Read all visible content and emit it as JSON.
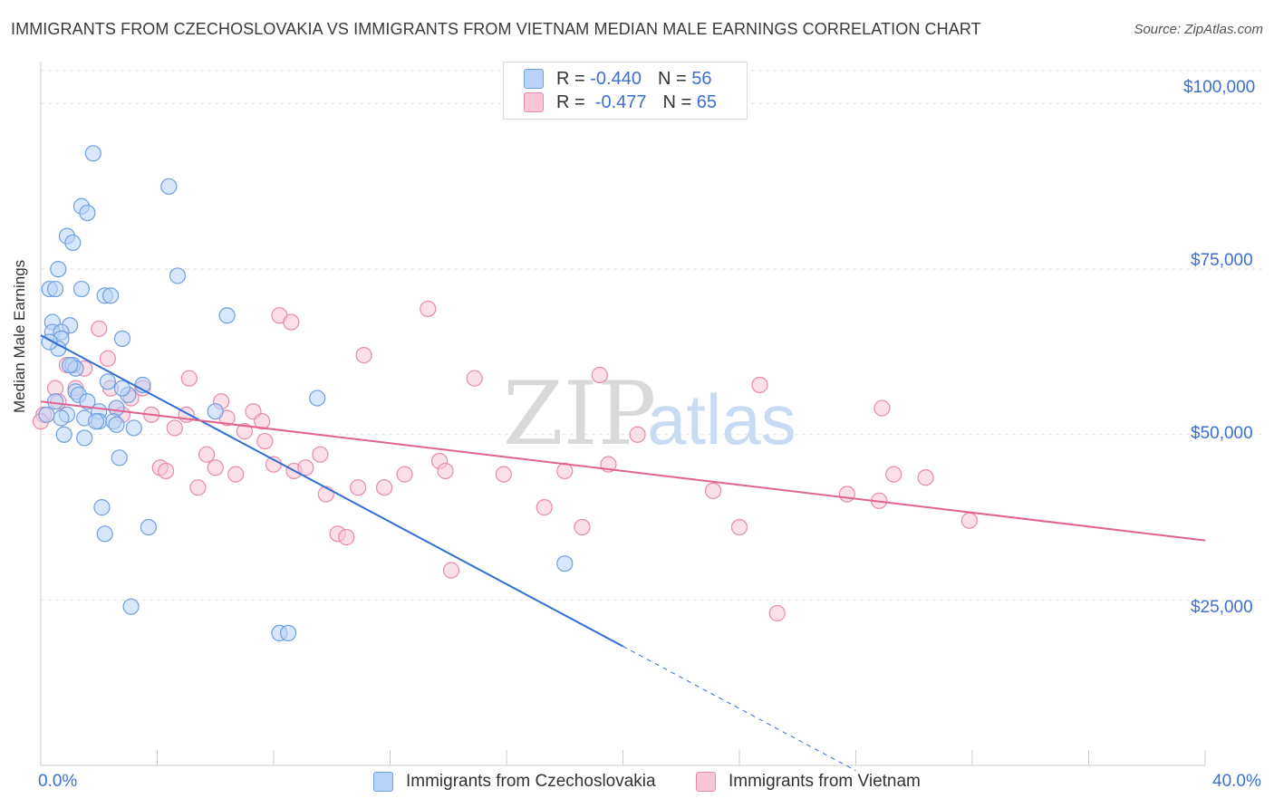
{
  "title": "IMMIGRANTS FROM CZECHOSLOVAKIA VS IMMIGRANTS FROM VIETNAM MEDIAN MALE EARNINGS CORRELATION CHART",
  "source": "Source: ZipAtlas.com",
  "watermark": {
    "zip": "ZIP",
    "atlas": "atlas"
  },
  "legend": {
    "rows": [
      {
        "r_label": "R = ",
        "r_value": "-0.440",
        "n_label": "N = ",
        "n_value": "56",
        "color": "#a8c8f4"
      },
      {
        "r_label": "R = ",
        "r_value": " -0.477",
        "n_label": "N = ",
        "n_value": "65",
        "color": "#f5b8cc"
      }
    ]
  },
  "colors": {
    "blue_fill": "#b8d3f7",
    "blue_stroke": "#6f9fe0",
    "blue_line": "#2f6fd6",
    "pink_fill": "#f8c6d6",
    "pink_stroke": "#e98aaa",
    "pink_line": "#e0638f",
    "grid": "#e4e4e4",
    "axis_text": "#3b6fd1"
  },
  "chart_data": {
    "type": "scatter",
    "title": "IMMIGRANTS FROM CZECHOSLOVAKIA VS IMMIGRANTS FROM VIETNAM MEDIAN MALE EARNINGS CORRELATION CHART",
    "xlabel": "",
    "ylabel": "Median Male Earnings",
    "xlim": [
      0,
      40
    ],
    "ylim": [
      0,
      105000
    ],
    "y_ticks": [
      25000,
      50000,
      75000,
      100000
    ],
    "y_tick_labels": [
      "$25,000",
      "$50,000",
      "$75,000",
      "$100,000"
    ],
    "x_tick_labels": [
      "0.0%",
      "40.0%"
    ],
    "series": [
      {
        "name": "Immigrants from Czechoslovakia",
        "r": -0.44,
        "n": 56,
        "trend": {
          "x0": 0,
          "y0": 65000,
          "x1": 20,
          "y1": 18000,
          "dash_to_x": 28
        },
        "points": [
          [
            1.8,
            92500
          ],
          [
            4.4,
            87500
          ],
          [
            1.4,
            84500
          ],
          [
            1.6,
            83500
          ],
          [
            0.9,
            80000
          ],
          [
            1.1,
            79000
          ],
          [
            0.6,
            75000
          ],
          [
            4.7,
            74000
          ],
          [
            0.3,
            72000
          ],
          [
            0.5,
            72000
          ],
          [
            1.4,
            72000
          ],
          [
            2.2,
            71000
          ],
          [
            2.4,
            71000
          ],
          [
            6.4,
            68000
          ],
          [
            0.4,
            67000
          ],
          [
            1.0,
            66500
          ],
          [
            0.4,
            65500
          ],
          [
            0.7,
            65500
          ],
          [
            0.7,
            64500
          ],
          [
            2.8,
            64500
          ],
          [
            0.6,
            63000
          ],
          [
            1.1,
            60500
          ],
          [
            1.2,
            60000
          ],
          [
            2.3,
            58000
          ],
          [
            3.5,
            57500
          ],
          [
            1.2,
            56500
          ],
          [
            1.3,
            56000
          ],
          [
            1.6,
            55000
          ],
          [
            2.6,
            54000
          ],
          [
            2.0,
            53500
          ],
          [
            6.0,
            53500
          ],
          [
            0.9,
            53000
          ],
          [
            0.7,
            52500
          ],
          [
            1.5,
            52500
          ],
          [
            2.0,
            52000
          ],
          [
            2.5,
            52000
          ],
          [
            2.6,
            51500
          ],
          [
            3.2,
            51000
          ],
          [
            0.8,
            50000
          ],
          [
            1.5,
            49500
          ],
          [
            9.5,
            55500
          ],
          [
            2.7,
            46500
          ],
          [
            2.1,
            39000
          ],
          [
            2.2,
            35000
          ],
          [
            3.7,
            36000
          ],
          [
            18.0,
            30500
          ],
          [
            3.1,
            24000
          ],
          [
            8.2,
            20000
          ],
          [
            8.5,
            20000
          ],
          [
            0.2,
            53000
          ],
          [
            1.0,
            60500
          ],
          [
            0.3,
            64000
          ],
          [
            3.0,
            56000
          ],
          [
            1.9,
            52000
          ],
          [
            0.5,
            55000
          ],
          [
            2.8,
            57000
          ]
        ]
      },
      {
        "name": "Immigrants from Vietnam",
        "r": -0.477,
        "n": 65,
        "trend": {
          "x0": 0,
          "y0": 55000,
          "x1": 40,
          "y1": 34000
        },
        "points": [
          [
            0.1,
            53000
          ],
          [
            0.5,
            57000
          ],
          [
            0.6,
            55000
          ],
          [
            0.9,
            60500
          ],
          [
            1.2,
            57000
          ],
          [
            1.5,
            60000
          ],
          [
            2.0,
            66000
          ],
          [
            2.3,
            61500
          ],
          [
            2.4,
            57000
          ],
          [
            2.6,
            54000
          ],
          [
            2.8,
            53000
          ],
          [
            3.1,
            55500
          ],
          [
            3.5,
            57000
          ],
          [
            3.8,
            53000
          ],
          [
            4.1,
            45000
          ],
          [
            4.3,
            44500
          ],
          [
            4.6,
            51000
          ],
          [
            5.0,
            53000
          ],
          [
            5.1,
            58500
          ],
          [
            5.4,
            42000
          ],
          [
            5.7,
            47000
          ],
          [
            6.0,
            45000
          ],
          [
            6.2,
            55000
          ],
          [
            6.4,
            52500
          ],
          [
            6.7,
            44000
          ],
          [
            7.0,
            50500
          ],
          [
            7.3,
            53500
          ],
          [
            7.6,
            52000
          ],
          [
            7.7,
            49000
          ],
          [
            8.0,
            45500
          ],
          [
            8.2,
            68000
          ],
          [
            8.6,
            67000
          ],
          [
            8.7,
            44500
          ],
          [
            9.1,
            45000
          ],
          [
            9.6,
            47000
          ],
          [
            9.8,
            41000
          ],
          [
            10.2,
            35000
          ],
          [
            10.5,
            34500
          ],
          [
            10.9,
            42000
          ],
          [
            11.1,
            62000
          ],
          [
            11.8,
            42000
          ],
          [
            12.5,
            44000
          ],
          [
            13.3,
            69000
          ],
          [
            13.7,
            46000
          ],
          [
            13.9,
            44500
          ],
          [
            14.1,
            29500
          ],
          [
            14.9,
            58500
          ],
          [
            15.9,
            44000
          ],
          [
            17.3,
            39000
          ],
          [
            18.0,
            44500
          ],
          [
            18.6,
            36000
          ],
          [
            19.2,
            59000
          ],
          [
            19.5,
            45500
          ],
          [
            20.5,
            50000
          ],
          [
            23.1,
            41500
          ],
          [
            24.0,
            36000
          ],
          [
            24.7,
            57500
          ],
          [
            25.3,
            23000
          ],
          [
            27.7,
            41000
          ],
          [
            28.8,
            40000
          ],
          [
            28.9,
            54000
          ],
          [
            29.3,
            44000
          ],
          [
            30.4,
            43500
          ],
          [
            31.9,
            37000
          ],
          [
            0.0,
            52000
          ]
        ]
      }
    ]
  },
  "bottom_legend": {
    "items": [
      {
        "label": "Immigrants from Czechoslovakia",
        "color": "#b8d3f7"
      },
      {
        "label": "Immigrants from Vietnam",
        "color": "#f8c6d6"
      }
    ]
  }
}
